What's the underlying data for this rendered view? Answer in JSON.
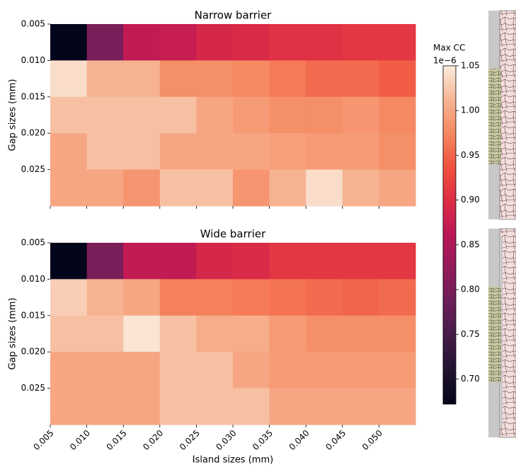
{
  "chart_data": [
    {
      "type": "heatmap",
      "title": "Narrow barrier",
      "ylabel": "Gap sizes (mm)",
      "xlim": [
        0.005,
        0.055
      ],
      "ylim": [
        0.005,
        0.03
      ],
      "y_inverted": true,
      "xticks": [
        0.005,
        0.01,
        0.015,
        0.02,
        0.025,
        0.03,
        0.035,
        0.04,
        0.045,
        0.05
      ],
      "yticks": [
        {
          "value": 0.005,
          "label": "0.005"
        },
        {
          "value": 0.01,
          "label": "0.010"
        },
        {
          "value": 0.015,
          "label": "0.015"
        },
        {
          "value": 0.02,
          "label": "0.020"
        },
        {
          "value": 0.025,
          "label": "0.025"
        }
      ],
      "z": [
        [
          0.672,
          0.8,
          0.87,
          0.875,
          0.89,
          0.895,
          0.905,
          0.905,
          0.91,
          0.91
        ],
        [
          1.04,
          1.01,
          1.01,
          0.98,
          0.98,
          0.975,
          0.965,
          0.955,
          0.955,
          0.945
        ],
        [
          1.02,
          1.02,
          1.02,
          1.02,
          1.0,
          0.99,
          0.98,
          0.98,
          0.985,
          0.975
        ],
        [
          1.0,
          1.02,
          1.02,
          1.0,
          1.0,
          1.0,
          0.995,
          0.99,
          0.99,
          0.98
        ],
        [
          1.0,
          1.0,
          0.985,
          1.02,
          1.02,
          0.985,
          1.01,
          1.04,
          1.01,
          1.0
        ]
      ]
    },
    {
      "type": "heatmap",
      "title": "Wide barrier",
      "ylabel": "Gap sizes (mm)",
      "xlabel": "Island sizes (mm)",
      "xlim": [
        0.005,
        0.055
      ],
      "ylim": [
        0.005,
        0.03
      ],
      "y_inverted": true,
      "xticks": [
        {
          "value": 0.005,
          "label": "0.005"
        },
        {
          "value": 0.01,
          "label": "0.010"
        },
        {
          "value": 0.015,
          "label": "0.015"
        },
        {
          "value": 0.02,
          "label": "0.020"
        },
        {
          "value": 0.025,
          "label": "0.025"
        },
        {
          "value": 0.03,
          "label": "0.030"
        },
        {
          "value": 0.035,
          "label": "0.035"
        },
        {
          "value": 0.04,
          "label": "0.040"
        },
        {
          "value": 0.045,
          "label": "0.045"
        },
        {
          "value": 0.05,
          "label": "0.050"
        }
      ],
      "yticks": [
        {
          "value": 0.005,
          "label": "0.005"
        },
        {
          "value": 0.01,
          "label": "0.010"
        },
        {
          "value": 0.015,
          "label": "0.015"
        },
        {
          "value": 0.02,
          "label": "0.020"
        },
        {
          "value": 0.025,
          "label": "0.025"
        }
      ],
      "z": [
        [
          0.672,
          0.8,
          0.87,
          0.87,
          0.89,
          0.895,
          0.91,
          0.91,
          0.91,
          0.91
        ],
        [
          1.03,
          1.01,
          1.0,
          0.97,
          0.97,
          0.965,
          0.96,
          0.955,
          0.95,
          0.955
        ],
        [
          1.02,
          1.02,
          1.045,
          1.02,
          1.005,
          1.005,
          0.99,
          0.98,
          0.98,
          0.98
        ],
        [
          1.0,
          1.0,
          1.0,
          1.02,
          1.02,
          1.0,
          0.99,
          0.99,
          0.99,
          0.99
        ],
        [
          1.0,
          1.0,
          1.0,
          1.02,
          1.02,
          1.02,
          1.0,
          1.0,
          1.0,
          1.0
        ]
      ]
    }
  ],
  "colorbar": {
    "label": "Max CC",
    "offset_label": "1e−6",
    "clim": [
      0.672,
      1.05
    ],
    "ticks": [
      {
        "value": 0.7,
        "label": "0.70"
      },
      {
        "value": 0.75,
        "label": "0.75"
      },
      {
        "value": 0.8,
        "label": "0.80"
      },
      {
        "value": 0.85,
        "label": "0.85"
      },
      {
        "value": 0.9,
        "label": "0.90"
      },
      {
        "value": 0.95,
        "label": "0.95"
      },
      {
        "value": 1.0,
        "label": "1.00"
      },
      {
        "value": 1.05,
        "label": "1.05"
      }
    ]
  }
}
